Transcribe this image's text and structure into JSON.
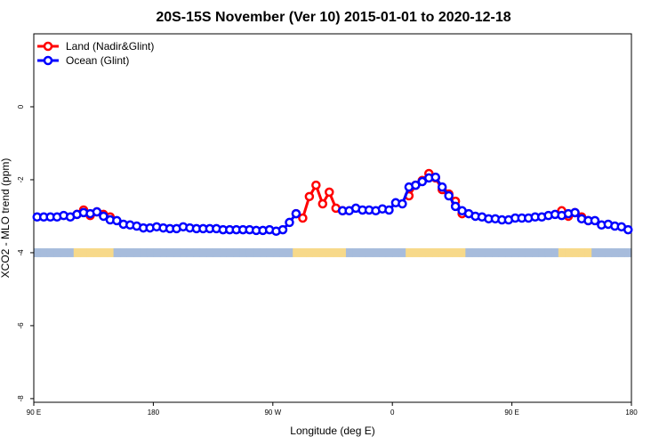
{
  "chart_data": {
    "type": "line",
    "title": "20S-15S November (Ver 10)   2015-01-01 to 2020-12-18",
    "x_label": "Longitude (deg E)",
    "y_label": "XCO2 - MLO trend (ppm)",
    "xlim": [
      90,
      540
    ],
    "xticks": [
      {
        "value": 90,
        "label": "90 E"
      },
      180,
      {
        "value": 270,
        "label": "90 W"
      },
      {
        "value": 360,
        "label": "0"
      },
      {
        "value": 450,
        "label": "90 E"
      },
      {
        "value": 540,
        "label": "180"
      }
    ],
    "ylim": [
      -8.1,
      2
    ],
    "yticks": [
      -8,
      -6,
      -4,
      -2,
      0
    ],
    "grid": false,
    "legend": "top-left",
    "x": [
      92.5,
      97.5,
      102.5,
      107.5,
      112.5,
      117.5,
      122.5,
      127.5,
      132.5,
      137.5,
      142.5,
      147.5,
      152.5,
      157.5,
      162.5,
      167.5,
      172.5,
      177.5,
      182.5,
      187.5,
      192.5,
      197.5,
      202.5,
      207.5,
      212.5,
      217.5,
      222.5,
      227.5,
      232.5,
      237.5,
      242.5,
      247.5,
      252.5,
      257.5,
      262.5,
      267.5,
      272.5,
      277.5,
      282.5,
      287.5,
      292.5,
      297.5,
      302.5,
      307.5,
      312.5,
      317.5,
      322.5,
      327.5,
      332.5,
      337.5,
      342.5,
      347.5,
      352.5,
      357.5,
      362.5,
      367.5,
      372.5,
      377.5,
      382.5,
      387.5,
      392.5,
      397.5,
      402.5,
      407.5,
      412.5,
      417.5,
      422.5,
      427.5,
      432.5,
      437.5,
      442.5,
      447.5,
      452.5,
      457.5,
      462.5,
      467.5,
      472.5,
      477.5,
      482.5,
      487.5,
      492.5,
      497.5,
      502.5,
      507.5,
      512.5,
      517.5,
      522.5,
      527.5,
      532.5,
      537.5
    ],
    "series": [
      {
        "name": "Land (Nadir&Glint)",
        "color": "#ff0000",
        "values": [
          null,
          null,
          null,
          null,
          null,
          null,
          -2.95,
          -2.83,
          -2.98,
          -2.88,
          -2.95,
          -3.02,
          null,
          null,
          null,
          null,
          null,
          null,
          null,
          null,
          null,
          null,
          null,
          null,
          null,
          null,
          null,
          null,
          null,
          null,
          null,
          null,
          null,
          null,
          null,
          null,
          null,
          null,
          null,
          -2.93,
          -3.05,
          -2.46,
          -2.15,
          -2.66,
          -2.34,
          -2.78,
          -2.85,
          null,
          null,
          null,
          null,
          null,
          null,
          null,
          null,
          null,
          -2.44,
          -2.15,
          -2.02,
          -1.83,
          -1.95,
          -2.27,
          -2.39,
          -2.59,
          -2.93,
          null,
          null,
          null,
          null,
          null,
          null,
          null,
          null,
          null,
          null,
          null,
          null,
          null,
          null,
          -2.85,
          -3.0,
          -2.9,
          -3.02,
          -3.12,
          null,
          null,
          null,
          null,
          null,
          null
        ]
      },
      {
        "name": "Ocean (Glint)",
        "color": "#0000ff",
        "values": [
          -3.02,
          -3.02,
          -3.02,
          -3.02,
          -2.98,
          -3.02,
          -2.95,
          -2.9,
          -2.93,
          -2.88,
          -3.0,
          -3.1,
          -3.12,
          -3.22,
          -3.24,
          -3.27,
          -3.32,
          -3.32,
          -3.29,
          -3.32,
          -3.34,
          -3.34,
          -3.29,
          -3.32,
          -3.34,
          -3.34,
          -3.34,
          -3.34,
          -3.37,
          -3.37,
          -3.37,
          -3.37,
          -3.37,
          -3.39,
          -3.39,
          -3.37,
          -3.41,
          -3.37,
          -3.17,
          -2.93,
          null,
          null,
          null,
          null,
          null,
          null,
          -2.85,
          -2.85,
          -2.78,
          -2.83,
          -2.83,
          -2.85,
          -2.8,
          -2.83,
          -2.63,
          -2.66,
          -2.2,
          -2.15,
          -2.05,
          -1.95,
          -1.93,
          -2.2,
          -2.44,
          -2.73,
          -2.85,
          -2.93,
          -3.0,
          -3.02,
          -3.07,
          -3.07,
          -3.1,
          -3.1,
          -3.05,
          -3.05,
          -3.05,
          -3.02,
          -3.02,
          -2.98,
          -2.95,
          -2.98,
          -2.93,
          -2.9,
          -3.07,
          -3.12,
          -3.12,
          -3.24,
          -3.22,
          -3.27,
          -3.29,
          -3.37
        ]
      }
    ]
  }
}
